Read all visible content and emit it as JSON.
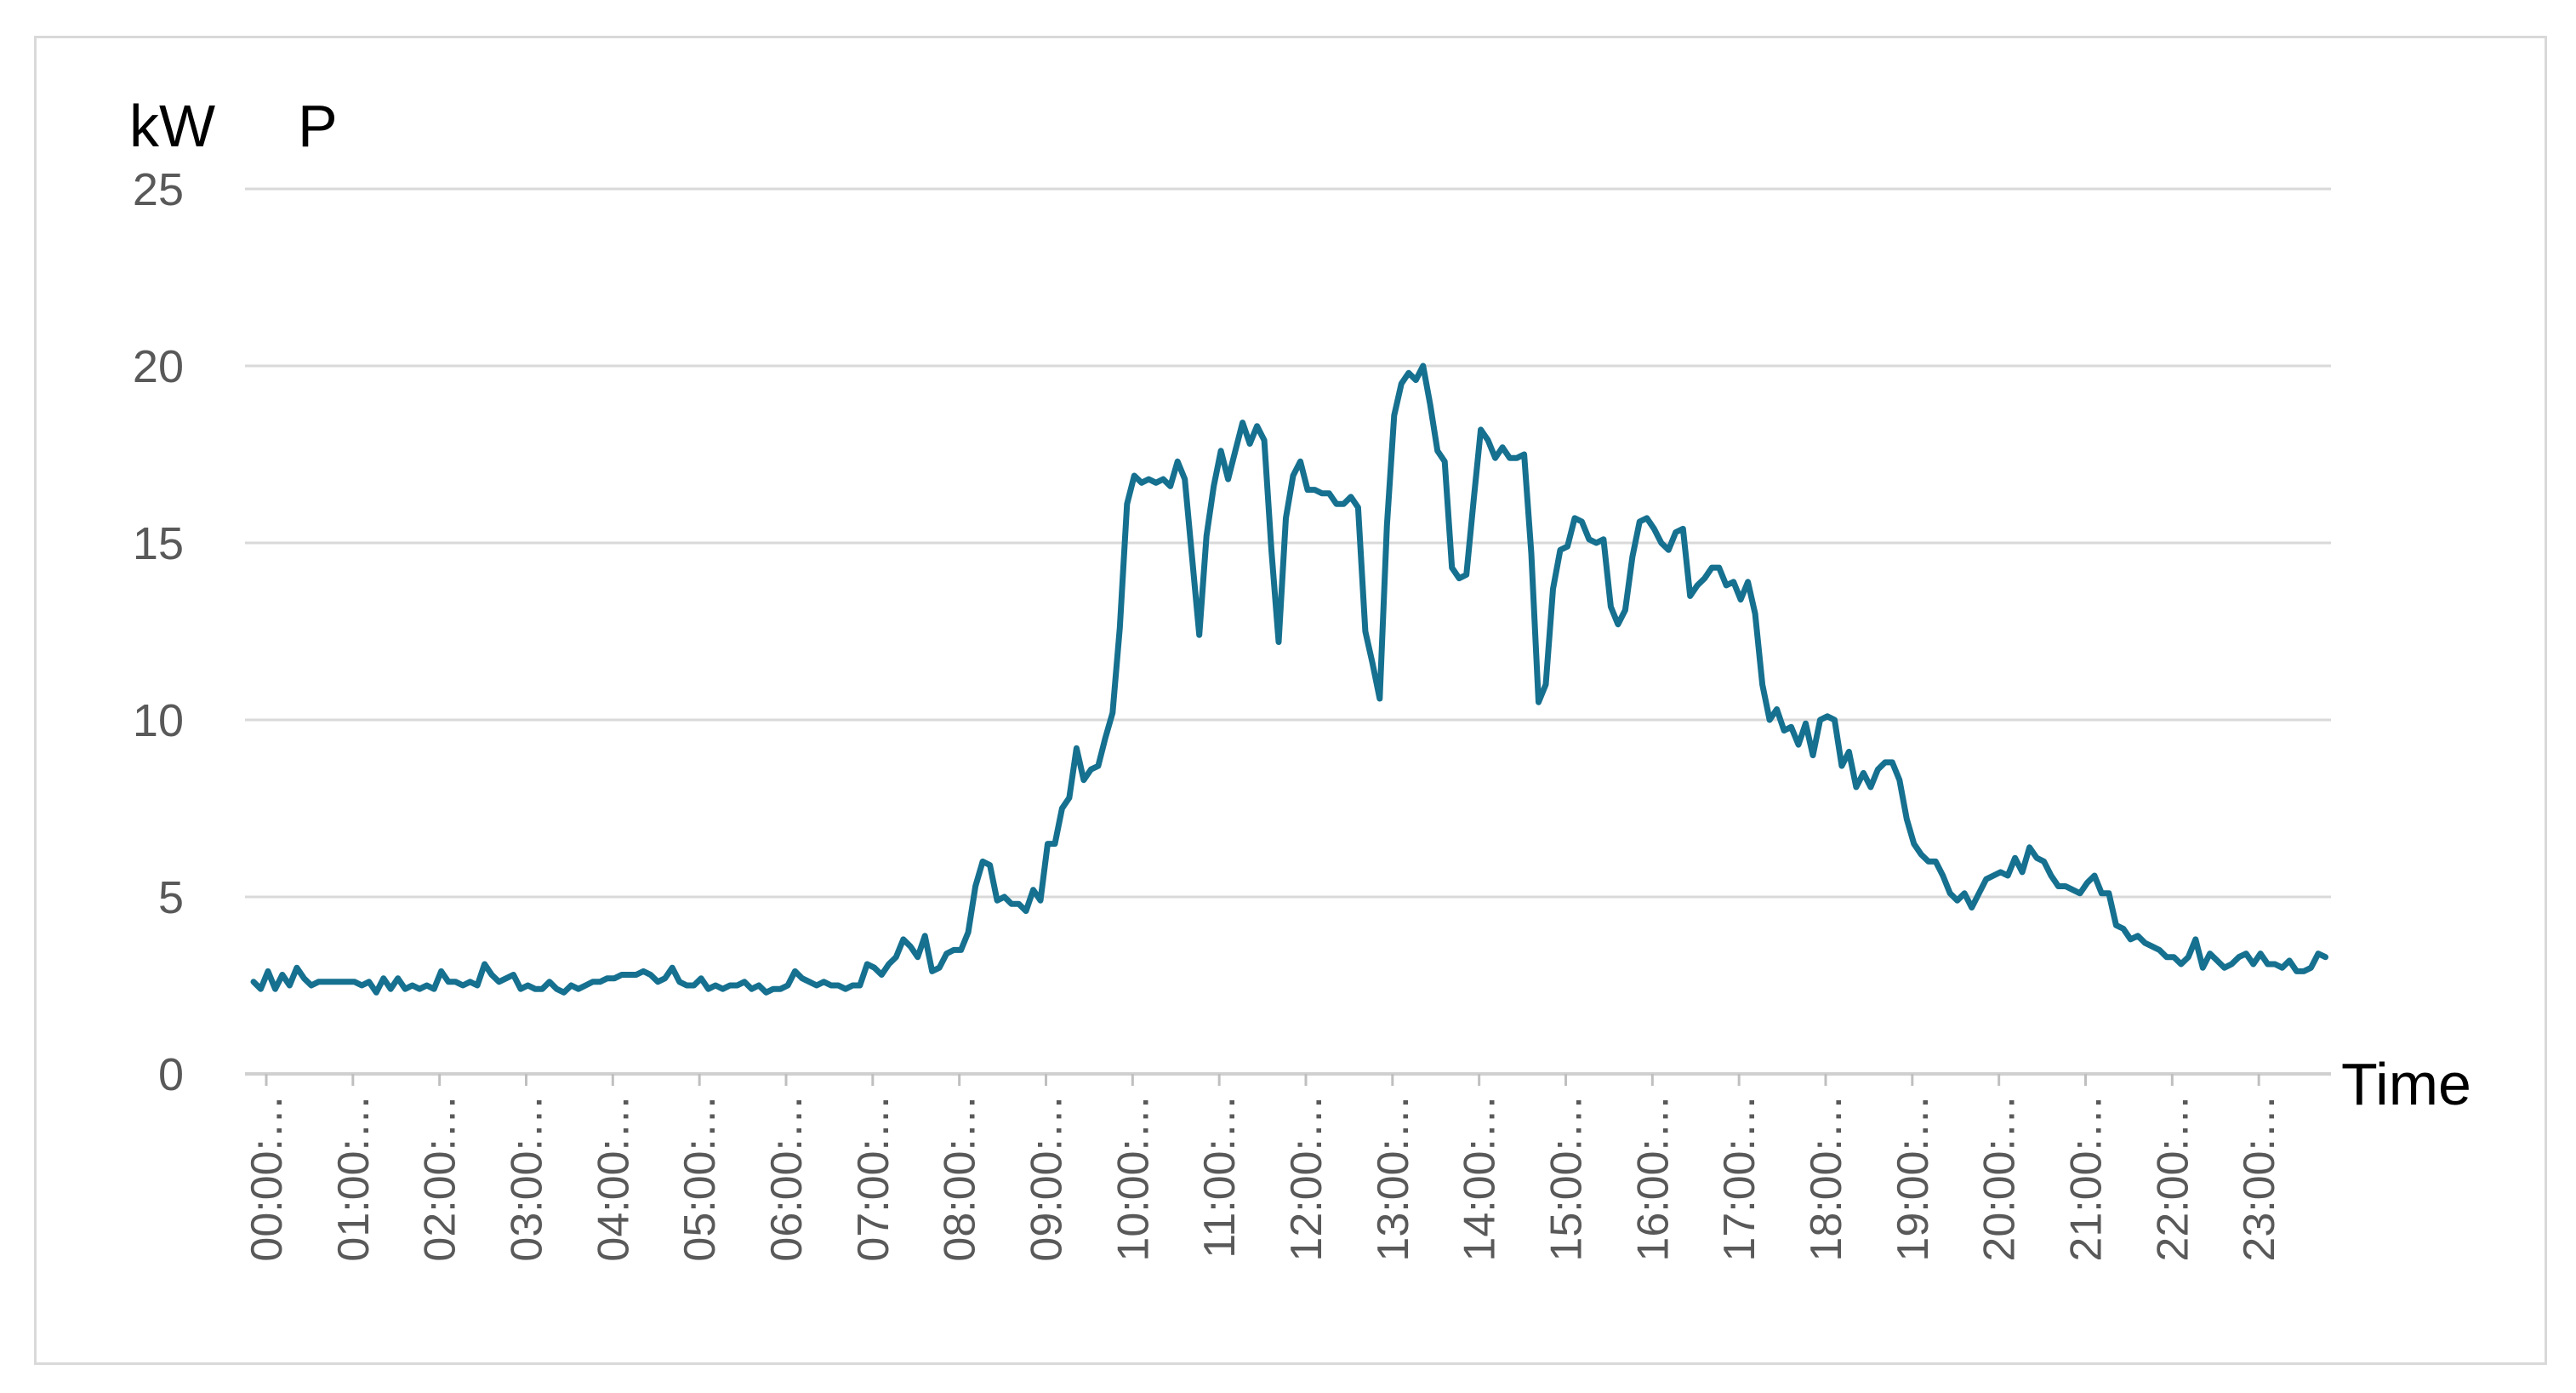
{
  "chart_data": {
    "type": "line",
    "ylabel": "kW",
    "series_label": "P",
    "xlabel": "Time",
    "ylim": [
      0,
      25
    ],
    "yticks": [
      0,
      5,
      10,
      15,
      20,
      25
    ],
    "xlim": [
      0,
      288
    ],
    "grid": true,
    "line_color": "#16708f",
    "x_tick_labels": [
      "00:00:…",
      "01:00:…",
      "02:00:…",
      "03:00:…",
      "04:00:…",
      "05:00:…",
      "06:00:…",
      "07:00:…",
      "08:00:…",
      "09:00:…",
      "10:00:…",
      "11:00:…",
      "12:00:…",
      "13:00:…",
      "14:00:…",
      "15:00:…",
      "16:00:…",
      "17:00:…",
      "18:00:…",
      "19:00:…",
      "20:00:…",
      "21:00:…",
      "22:00:…",
      "23:00:…"
    ],
    "x_step_minutes": 5,
    "series": [
      {
        "values": [
          2.6,
          2.4,
          2.9,
          2.4,
          2.8,
          2.5,
          3.0,
          2.7,
          2.5,
          2.6,
          2.6,
          2.6,
          2.6,
          2.6,
          2.6,
          2.5,
          2.6,
          2.3,
          2.7,
          2.4,
          2.7,
          2.4,
          2.5,
          2.4,
          2.5,
          2.4,
          2.9,
          2.6,
          2.6,
          2.5,
          2.6,
          2.5,
          3.1,
          2.8,
          2.6,
          2.7,
          2.8,
          2.4,
          2.5,
          2.4,
          2.4,
          2.6,
          2.4,
          2.3,
          2.5,
          2.4,
          2.5,
          2.6,
          2.6,
          2.7,
          2.7,
          2.8,
          2.8,
          2.8,
          2.9,
          2.8,
          2.6,
          2.7,
          3.0,
          2.6,
          2.5,
          2.5,
          2.7,
          2.4,
          2.5,
          2.4,
          2.5,
          2.5,
          2.6,
          2.4,
          2.5,
          2.3,
          2.4,
          2.4,
          2.5,
          2.9,
          2.7,
          2.6,
          2.5,
          2.6,
          2.5,
          2.5,
          2.4,
          2.5,
          2.5,
          3.1,
          3.0,
          2.8,
          3.1,
          3.3,
          3.8,
          3.6,
          3.3,
          3.9,
          2.9,
          3.0,
          3.4,
          3.5,
          3.5,
          4.0,
          5.3,
          6.0,
          5.9,
          4.9,
          5.0,
          4.8,
          4.8,
          4.6,
          5.2,
          4.9,
          6.5,
          6.5,
          7.5,
          7.8,
          9.2,
          8.3,
          8.6,
          8.7,
          9.5,
          10.2,
          12.6,
          16.1,
          16.9,
          16.7,
          16.8,
          16.7,
          16.8,
          16.6,
          17.3,
          16.8,
          14.6,
          12.4,
          15.2,
          16.6,
          17.6,
          16.8,
          17.6,
          18.4,
          17.8,
          18.3,
          17.9,
          14.8,
          12.2,
          15.7,
          16.9,
          17.3,
          16.5,
          16.5,
          16.4,
          16.4,
          16.1,
          16.1,
          16.3,
          16.0,
          12.5,
          11.6,
          10.6,
          15.5,
          18.6,
          19.5,
          19.8,
          19.6,
          20.0,
          18.9,
          17.6,
          17.3,
          14.3,
          14.0,
          14.1,
          16.2,
          18.2,
          17.9,
          17.4,
          17.7,
          17.4,
          17.4,
          17.5,
          14.7,
          10.5,
          11.0,
          13.7,
          14.8,
          14.9,
          15.7,
          15.6,
          15.1,
          15.0,
          15.1,
          13.2,
          12.7,
          13.1,
          14.6,
          15.6,
          15.7,
          15.4,
          15.0,
          14.8,
          15.3,
          15.4,
          13.5,
          13.8,
          14.0,
          14.3,
          14.3,
          13.8,
          13.9,
          13.4,
          13.9,
          13.0,
          11.0,
          10.0,
          10.3,
          9.7,
          9.8,
          9.3,
          9.9,
          9.0,
          10.0,
          10.1,
          10.0,
          8.7,
          9.1,
          8.1,
          8.5,
          8.1,
          8.6,
          8.8,
          8.8,
          8.3,
          7.2,
          6.5,
          6.2,
          6.0,
          6.0,
          5.6,
          5.1,
          4.9,
          5.1,
          4.7,
          5.1,
          5.5,
          5.6,
          5.7,
          5.6,
          6.1,
          5.7,
          6.4,
          6.1,
          6.0,
          5.6,
          5.3,
          5.3,
          5.2,
          5.1,
          5.4,
          5.6,
          5.1,
          5.1,
          4.2,
          4.1,
          3.8,
          3.9,
          3.7,
          3.6,
          3.5,
          3.3,
          3.3,
          3.1,
          3.3,
          3.8,
          3.0,
          3.4,
          3.2,
          3.0,
          3.1,
          3.3,
          3.4,
          3.1,
          3.4,
          3.1,
          3.1,
          3.0,
          3.2,
          2.9,
          2.9,
          3.0,
          3.4,
          3.3
        ]
      }
    ]
  }
}
